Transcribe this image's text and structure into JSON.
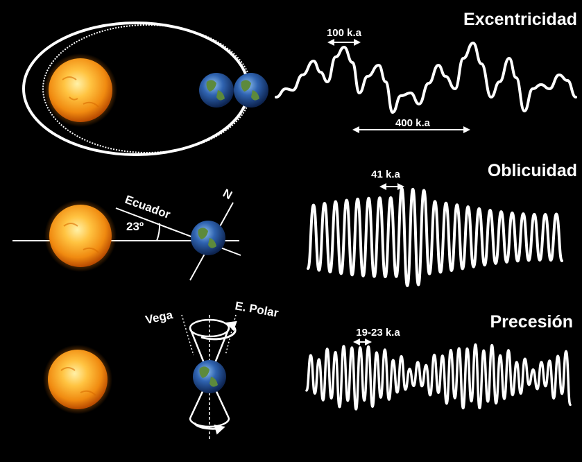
{
  "panels": {
    "eccentricity": {
      "title": "Excentricidad",
      "period_short": "100 k.a",
      "period_long": "400 k.a"
    },
    "obliquity": {
      "title": "Oblicuidad",
      "period": "41 k.a",
      "equator_label": "Ecuador",
      "tilt_label": "23º",
      "north_label": "N"
    },
    "precession": {
      "title": "Precesión",
      "period": "19-23 k.a",
      "star_left": "Vega",
      "star_right": "E. Polar"
    }
  },
  "colors": {
    "background": "#000000",
    "foreground": "#ffffff",
    "sun_core": "#ffd36a",
    "sun_edge": "#e06a00",
    "earth_ocean": "#2f63b0",
    "earth_land": "#5d8a3c"
  }
}
